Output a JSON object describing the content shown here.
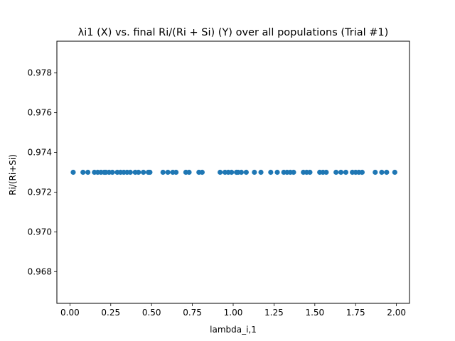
{
  "chart_data": {
    "type": "scatter",
    "title": "λi1 (X) vs. final Ri/(Ri + Si) (Y) over all populations (Trial #1)",
    "xlabel": "lambda_i,1",
    "ylabel": "Ri/(Ri+Si)",
    "xlim": [
      -0.08,
      2.08
    ],
    "ylim": [
      0.9664,
      0.9796
    ],
    "xticks": [
      "0.00",
      "0.25",
      "0.50",
      "0.75",
      "1.00",
      "1.25",
      "1.50",
      "1.75",
      "2.00"
    ],
    "yticks": [
      "0.968",
      "0.970",
      "0.972",
      "0.974",
      "0.976",
      "0.978"
    ],
    "grid": false,
    "marker_color": "#1f77b4",
    "series": [
      {
        "x": [
          0.02,
          0.08,
          0.11,
          0.15,
          0.17,
          0.19,
          0.21,
          0.22,
          0.24,
          0.26,
          0.29,
          0.31,
          0.33,
          0.35,
          0.37,
          0.4,
          0.42,
          0.45,
          0.48,
          0.49,
          0.57,
          0.6,
          0.63,
          0.65,
          0.71,
          0.73,
          0.79,
          0.81,
          0.92,
          0.95,
          0.97,
          0.99,
          1.02,
          1.03,
          1.05,
          1.08,
          1.13,
          1.17,
          1.23,
          1.27,
          1.31,
          1.33,
          1.35,
          1.37,
          1.43,
          1.45,
          1.47,
          1.53,
          1.55,
          1.57,
          1.63,
          1.66,
          1.69,
          1.73,
          1.75,
          1.77,
          1.79,
          1.87,
          1.91,
          1.94,
          1.99
        ],
        "y": [
          0.973,
          0.973,
          0.973,
          0.973,
          0.973,
          0.973,
          0.973,
          0.973,
          0.973,
          0.973,
          0.973,
          0.973,
          0.973,
          0.973,
          0.973,
          0.973,
          0.973,
          0.973,
          0.973,
          0.973,
          0.973,
          0.973,
          0.973,
          0.973,
          0.973,
          0.973,
          0.973,
          0.973,
          0.973,
          0.973,
          0.973,
          0.973,
          0.973,
          0.973,
          0.973,
          0.973,
          0.973,
          0.973,
          0.973,
          0.973,
          0.973,
          0.973,
          0.973,
          0.973,
          0.973,
          0.973,
          0.973,
          0.973,
          0.973,
          0.973,
          0.973,
          0.973,
          0.973,
          0.973,
          0.973,
          0.973,
          0.973,
          0.973,
          0.973,
          0.973,
          0.973
        ]
      }
    ]
  }
}
